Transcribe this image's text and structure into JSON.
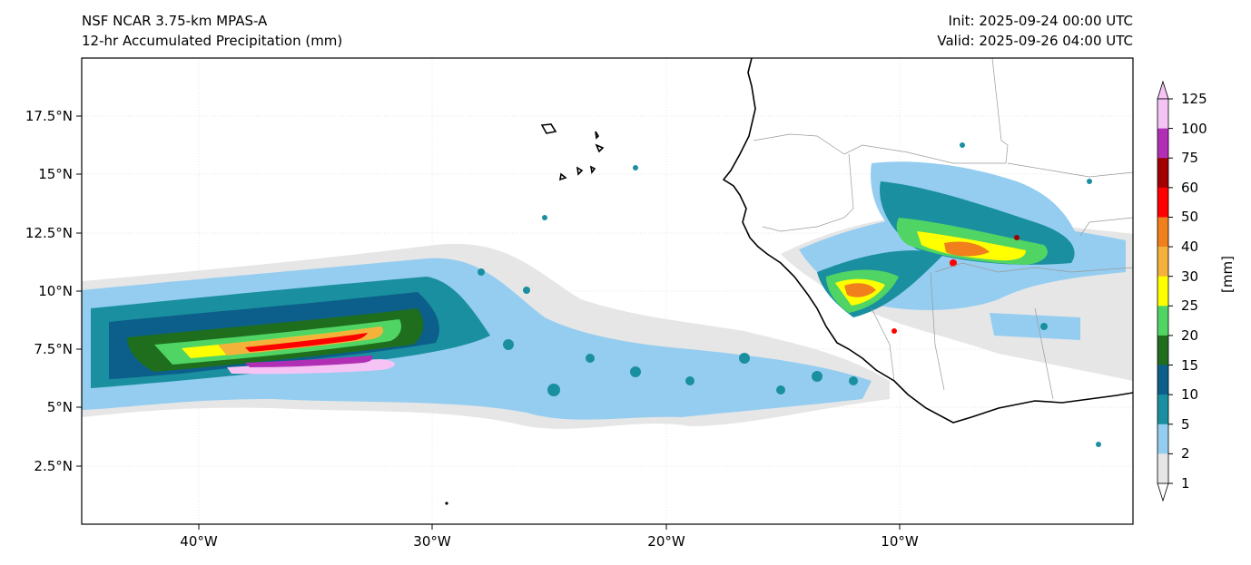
{
  "header": {
    "model": "NSF NCAR 3.75-km MPAS-A",
    "field": "12-hr Accumulated Precipitation (mm)",
    "init": "Init: 2025-09-24 00:00 UTC",
    "valid": "Valid: 2025-09-26 04:00 UTC"
  },
  "axes": {
    "lat_labels": [
      "17.5°N",
      "15°N",
      "12.5°N",
      "10°N",
      "7.5°N",
      "5°N",
      "2.5°N"
    ],
    "lon_labels": [
      "40°W",
      "30°W",
      "20°W",
      "10°W"
    ]
  },
  "colorbar": {
    "unit": "[mm]",
    "levels": [
      "125",
      "100",
      "75",
      "60",
      "50",
      "40",
      "30",
      "25",
      "20",
      "15",
      "10",
      "5",
      "2",
      "1"
    ],
    "colors": [
      "#f5c4f5",
      "#b12fb5",
      "#a00000",
      "#ff0000",
      "#f07f1c",
      "#f5b23b",
      "#ffff00",
      "#50d463",
      "#1e6e1e",
      "#0b5f8a",
      "#1a8fa0",
      "#95cdf0",
      "#e6e6e6"
    ]
  }
}
